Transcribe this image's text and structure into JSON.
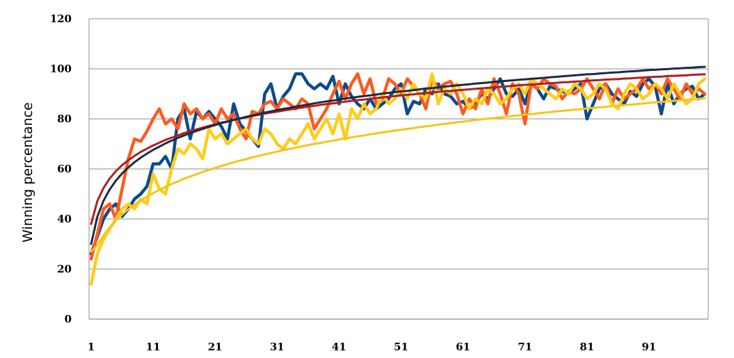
{
  "chart_data": {
    "type": "line",
    "title": "",
    "xlabel": "",
    "ylabel": "Winning percentance",
    "ylim": [
      0,
      120
    ],
    "y_ticks": [
      "0",
      "20",
      "40",
      "60",
      "80",
      "100",
      "120"
    ],
    "xlim": [
      1,
      100
    ],
    "x_ticks": [
      "1",
      "11",
      "21",
      "31",
      "41",
      "51",
      "61",
      "71",
      "81",
      "91"
    ],
    "grid": "horizontal",
    "legend": "none",
    "series": [
      {
        "color": "#0b4a8b",
        "style": "raw",
        "x": [
          1,
          2,
          3,
          4,
          5,
          6,
          7,
          8,
          9,
          10,
          11,
          12,
          13,
          14,
          15,
          16,
          17,
          18,
          19,
          20,
          21,
          22,
          23,
          24,
          25,
          26,
          27,
          28,
          29,
          30,
          31,
          32,
          33,
          34,
          35,
          36,
          37,
          38,
          39,
          40,
          41,
          42,
          43,
          44,
          45,
          46,
          47,
          48,
          49,
          50,
          51,
          52,
          53,
          54,
          55,
          56,
          57,
          58,
          59,
          60,
          61,
          62,
          63,
          64,
          65,
          66,
          67,
          68,
          69,
          70,
          71,
          72,
          73,
          74,
          75,
          76,
          77,
          78,
          79,
          80,
          81,
          82,
          83,
          84,
          85,
          86,
          87,
          88,
          89,
          90,
          91,
          92,
          93,
          94,
          95,
          96,
          97,
          98,
          99,
          100
        ],
        "values": [
          26,
          33,
          40,
          44,
          46,
          41,
          44,
          48,
          50,
          53,
          62,
          62,
          65,
          60,
          80,
          84,
          72,
          83,
          80,
          83,
          80,
          77,
          72,
          86,
          78,
          75,
          72,
          69,
          90,
          94,
          84,
          89,
          92,
          98,
          98,
          94,
          92,
          94,
          92,
          97,
          86,
          94,
          89,
          86,
          84,
          88,
          84,
          86,
          88,
          92,
          94,
          82,
          87,
          86,
          92,
          90,
          94,
          90,
          89,
          86,
          87,
          84,
          86,
          90,
          88,
          92,
          96,
          90,
          89,
          92,
          86,
          94,
          92,
          88,
          93,
          92,
          91,
          90,
          92,
          94,
          80,
          86,
          92,
          94,
          90,
          88,
          86,
          91,
          89,
          94,
          96,
          93,
          82,
          94,
          86,
          90,
          92,
          93,
          88,
          90
        ]
      },
      {
        "color": "#ff5a1f",
        "style": "raw",
        "x": [
          1,
          2,
          3,
          4,
          5,
          6,
          7,
          8,
          9,
          10,
          11,
          12,
          13,
          14,
          15,
          16,
          17,
          18,
          19,
          20,
          21,
          22,
          23,
          24,
          25,
          26,
          27,
          28,
          29,
          30,
          31,
          32,
          33,
          34,
          35,
          36,
          37,
          38,
          39,
          40,
          41,
          42,
          43,
          44,
          45,
          46,
          47,
          48,
          49,
          50,
          51,
          52,
          53,
          54,
          55,
          56,
          57,
          58,
          59,
          60,
          61,
          62,
          63,
          64,
          65,
          66,
          67,
          68,
          69,
          70,
          71,
          72,
          73,
          74,
          75,
          76,
          77,
          78,
          79,
          80,
          81,
          82,
          83,
          84,
          85,
          86,
          87,
          88,
          89,
          90,
          91,
          92,
          93,
          94,
          95,
          96,
          97,
          98,
          99,
          100
        ],
        "values": [
          24,
          34,
          44,
          46,
          40,
          52,
          64,
          72,
          71,
          75,
          80,
          84,
          78,
          80,
          76,
          86,
          82,
          84,
          80,
          82,
          78,
          84,
          80,
          82,
          76,
          72,
          83,
          82,
          86,
          87,
          84,
          88,
          86,
          84,
          88,
          86,
          76,
          80,
          84,
          90,
          95,
          88,
          94,
          98,
          90,
          96,
          86,
          88,
          96,
          94,
          90,
          96,
          93,
          90,
          84,
          96,
          92,
          94,
          95,
          90,
          82,
          88,
          84,
          92,
          86,
          96,
          90,
          82,
          94,
          90,
          78,
          94,
          92,
          96,
          94,
          93,
          88,
          91,
          90,
          92,
          96,
          92,
          88,
          94,
          86,
          92,
          88,
          90,
          92,
          96,
          92,
          94,
          90,
          96,
          92,
          88,
          94,
          90,
          92,
          90
        ]
      },
      {
        "color": "#ffcc1a",
        "style": "raw",
        "x": [
          1,
          2,
          3,
          4,
          5,
          6,
          7,
          8,
          9,
          10,
          11,
          12,
          13,
          14,
          15,
          16,
          17,
          18,
          19,
          20,
          21,
          22,
          23,
          24,
          25,
          26,
          27,
          28,
          29,
          30,
          31,
          32,
          33,
          34,
          35,
          36,
          37,
          38,
          39,
          40,
          41,
          42,
          43,
          44,
          45,
          46,
          47,
          48,
          49,
          50,
          51,
          52,
          53,
          54,
          55,
          56,
          57,
          58,
          59,
          60,
          61,
          62,
          63,
          64,
          65,
          66,
          67,
          68,
          69,
          70,
          71,
          72,
          73,
          74,
          75,
          76,
          77,
          78,
          79,
          80,
          81,
          82,
          83,
          84,
          85,
          86,
          87,
          88,
          89,
          90,
          91,
          92,
          93,
          94,
          95,
          96,
          97,
          98,
          99,
          100
        ],
        "values": [
          14,
          26,
          32,
          36,
          40,
          44,
          46,
          44,
          48,
          46,
          58,
          52,
          50,
          60,
          68,
          66,
          70,
          68,
          64,
          76,
          72,
          74,
          70,
          72,
          74,
          76,
          72,
          70,
          76,
          74,
          70,
          68,
          72,
          70,
          74,
          78,
          72,
          76,
          80,
          74,
          82,
          72,
          84,
          80,
          86,
          82,
          84,
          90,
          86,
          88,
          92,
          88,
          94,
          90,
          88,
          98,
          86,
          92,
          90,
          94,
          90,
          84,
          88,
          86,
          92,
          90,
          86,
          88,
          92,
          94,
          90,
          96,
          94,
          92,
          90,
          88,
          92,
          90,
          94,
          92,
          88,
          90,
          94,
          92,
          86,
          84,
          90,
          94,
          92,
          88,
          90,
          94,
          92,
          88,
          94,
          90,
          86,
          88,
          94,
          96
        ]
      },
      {
        "color": "#b01f1f",
        "style": "trend",
        "x": [
          1,
          2,
          3,
          4,
          5,
          6,
          7,
          8,
          9,
          10,
          11,
          12,
          13,
          14,
          15,
          16,
          17,
          18,
          19,
          20,
          21,
          22,
          23,
          24,
          25,
          26,
          27,
          28,
          29,
          30,
          31,
          32,
          33,
          34,
          35,
          36,
          37,
          38,
          39,
          40,
          41,
          42,
          43,
          44,
          45,
          46,
          47,
          48,
          49,
          50,
          51,
          52,
          53,
          54,
          55,
          56,
          57,
          58,
          59,
          60,
          61,
          62,
          63,
          64,
          65,
          66,
          67,
          68,
          69,
          70,
          71,
          72,
          73,
          74,
          75,
          76,
          77,
          78,
          79,
          80,
          81,
          82,
          83,
          84,
          85,
          86,
          87,
          88,
          89,
          90,
          91,
          92,
          93,
          94,
          95,
          96,
          97,
          98,
          99,
          100
        ],
        "values": [
          38,
          47.1,
          52.4,
          56.2,
          59.1,
          61.5,
          63.5,
          65.2,
          66.8,
          68.1,
          69.4,
          70.5,
          71.6,
          72.5,
          73.4,
          74.3,
          75.1,
          75.8,
          76.5,
          77.2,
          77.8,
          78.5,
          79,
          79.6,
          80.1,
          80.6,
          81.1,
          81.6,
          82.1,
          82.5,
          82.9,
          83.3,
          83.7,
          84.1,
          84.5,
          84.9,
          85.2,
          85.6,
          85.9,
          86.2,
          86.5,
          86.9,
          87.2,
          87.5,
          87.7,
          88,
          88.3,
          88.6,
          88.8,
          89.1,
          89.4,
          89.6,
          89.8,
          90.1,
          90.3,
          90.5,
          90.8,
          91,
          91.2,
          91.4,
          91.6,
          91.8,
          92,
          92.2,
          92.4,
          92.6,
          92.8,
          93,
          93.2,
          93.4,
          93.6,
          93.7,
          93.9,
          94.1,
          94.2,
          94.4,
          94.6,
          94.7,
          94.9,
          95,
          95.2,
          95.4,
          95.5,
          95.7,
          95.8,
          95.9,
          96.1,
          96.2,
          96.4,
          96.5,
          96.7,
          96.8,
          96.9,
          97.1,
          97.2,
          97.3,
          97.4,
          97.6,
          97.7,
          97.8
        ]
      },
      {
        "color": "#1c2b45",
        "style": "trend",
        "x": [
          1,
          2,
          3,
          4,
          5,
          6,
          7,
          8,
          9,
          10,
          11,
          12,
          13,
          14,
          15,
          16,
          17,
          18,
          19,
          20,
          21,
          22,
          23,
          24,
          25,
          26,
          27,
          28,
          29,
          30,
          31,
          32,
          33,
          34,
          35,
          36,
          37,
          38,
          39,
          40,
          41,
          42,
          43,
          44,
          45,
          46,
          47,
          48,
          49,
          50,
          51,
          52,
          53,
          54,
          55,
          56,
          57,
          58,
          59,
          60,
          61,
          62,
          63,
          64,
          65,
          66,
          67,
          68,
          69,
          70,
          71,
          72,
          73,
          74,
          75,
          76,
          77,
          78,
          79,
          80,
          81,
          82,
          83,
          84,
          85,
          86,
          87,
          88,
          89,
          90,
          91,
          92,
          93,
          94,
          95,
          96,
          97,
          98,
          99,
          100
        ],
        "values": [
          30,
          40.9,
          47.3,
          51.8,
          55.3,
          58.2,
          60.6,
          62.7,
          64.5,
          66.1,
          67.6,
          68.9,
          70.2,
          71.3,
          72.4,
          73.4,
          74.3,
          75.2,
          76,
          76.8,
          77.5,
          78.3,
          78.9,
          79.6,
          80.2,
          80.8,
          81.4,
          81.9,
          82.5,
          83,
          83.5,
          84,
          84.4,
          84.9,
          85.3,
          85.7,
          86.2,
          86.6,
          87,
          87.3,
          87.7,
          88.1,
          88.4,
          88.8,
          89.1,
          89.4,
          89.7,
          90.1,
          90.4,
          90.7,
          91,
          91.2,
          91.5,
          91.8,
          92.1,
          92.3,
          92.6,
          92.9,
          93.1,
          93.4,
          93.6,
          93.8,
          94.1,
          94.3,
          94.5,
          94.8,
          95,
          95.2,
          95.4,
          95.6,
          95.8,
          96,
          96.2,
          96.4,
          96.6,
          96.8,
          97,
          97.2,
          97.4,
          97.6,
          97.8,
          97.9,
          98.1,
          98.3,
          98.5,
          98.6,
          98.8,
          99,
          99.1,
          99.3,
          99.5,
          99.6,
          99.8,
          99.9,
          100.1,
          100.2,
          100.4,
          100.5,
          100.7,
          100.8
        ]
      },
      {
        "color": "#f5c518",
        "style": "trend",
        "x": [
          1,
          2,
          3,
          4,
          5,
          6,
          7,
          8,
          9,
          10,
          11,
          12,
          13,
          14,
          15,
          16,
          17,
          18,
          19,
          20,
          21,
          22,
          23,
          24,
          25,
          26,
          27,
          28,
          29,
          30,
          31,
          32,
          33,
          34,
          35,
          36,
          37,
          38,
          39,
          40,
          41,
          42,
          43,
          44,
          45,
          46,
          47,
          48,
          49,
          50,
          51,
          52,
          53,
          54,
          55,
          56,
          57,
          58,
          59,
          60,
          61,
          62,
          63,
          64,
          65,
          66,
          67,
          68,
          69,
          70,
          71,
          72,
          73,
          74,
          75,
          76,
          77,
          78,
          79,
          80,
          81,
          82,
          83,
          84,
          85,
          86,
          87,
          88,
          89,
          90,
          91,
          92,
          93,
          94,
          95,
          96,
          97,
          98,
          99,
          100
        ],
        "values": [
          27,
          29.5,
          33.4,
          36.7,
          39.5,
          41.8,
          43.9,
          45.7,
          47.4,
          48.9,
          50.3,
          51.6,
          52.8,
          54,
          55,
          56.1,
          57,
          57.9,
          58.8,
          59.6,
          60.4,
          61.2,
          61.9,
          62.6,
          63.3,
          63.9,
          64.6,
          65.2,
          65.8,
          66.4,
          66.9,
          67.5,
          68,
          68.5,
          69,
          69.5,
          70,
          70.4,
          70.9,
          71.3,
          71.8,
          72.2,
          72.6,
          73,
          73.4,
          73.8,
          74.2,
          74.6,
          74.9,
          75.3,
          75.6,
          76,
          76.3,
          76.7,
          77,
          77.3,
          77.7,
          78,
          78.3,
          78.6,
          78.9,
          79.2,
          79.5,
          79.8,
          80.1,
          80.3,
          80.6,
          80.9,
          81.2,
          81.4,
          81.7,
          81.9,
          82.2,
          82.5,
          82.7,
          83,
          83.2,
          83.4,
          83.7,
          83.9,
          84.2,
          84.4,
          84.6,
          84.8,
          85.1,
          85.3,
          85.5,
          85.7,
          85.9,
          86.1,
          86.4,
          86.6,
          86.8,
          87,
          87.2,
          87.4,
          87.6,
          87.8,
          88,
          88.2
        ]
      }
    ]
  }
}
